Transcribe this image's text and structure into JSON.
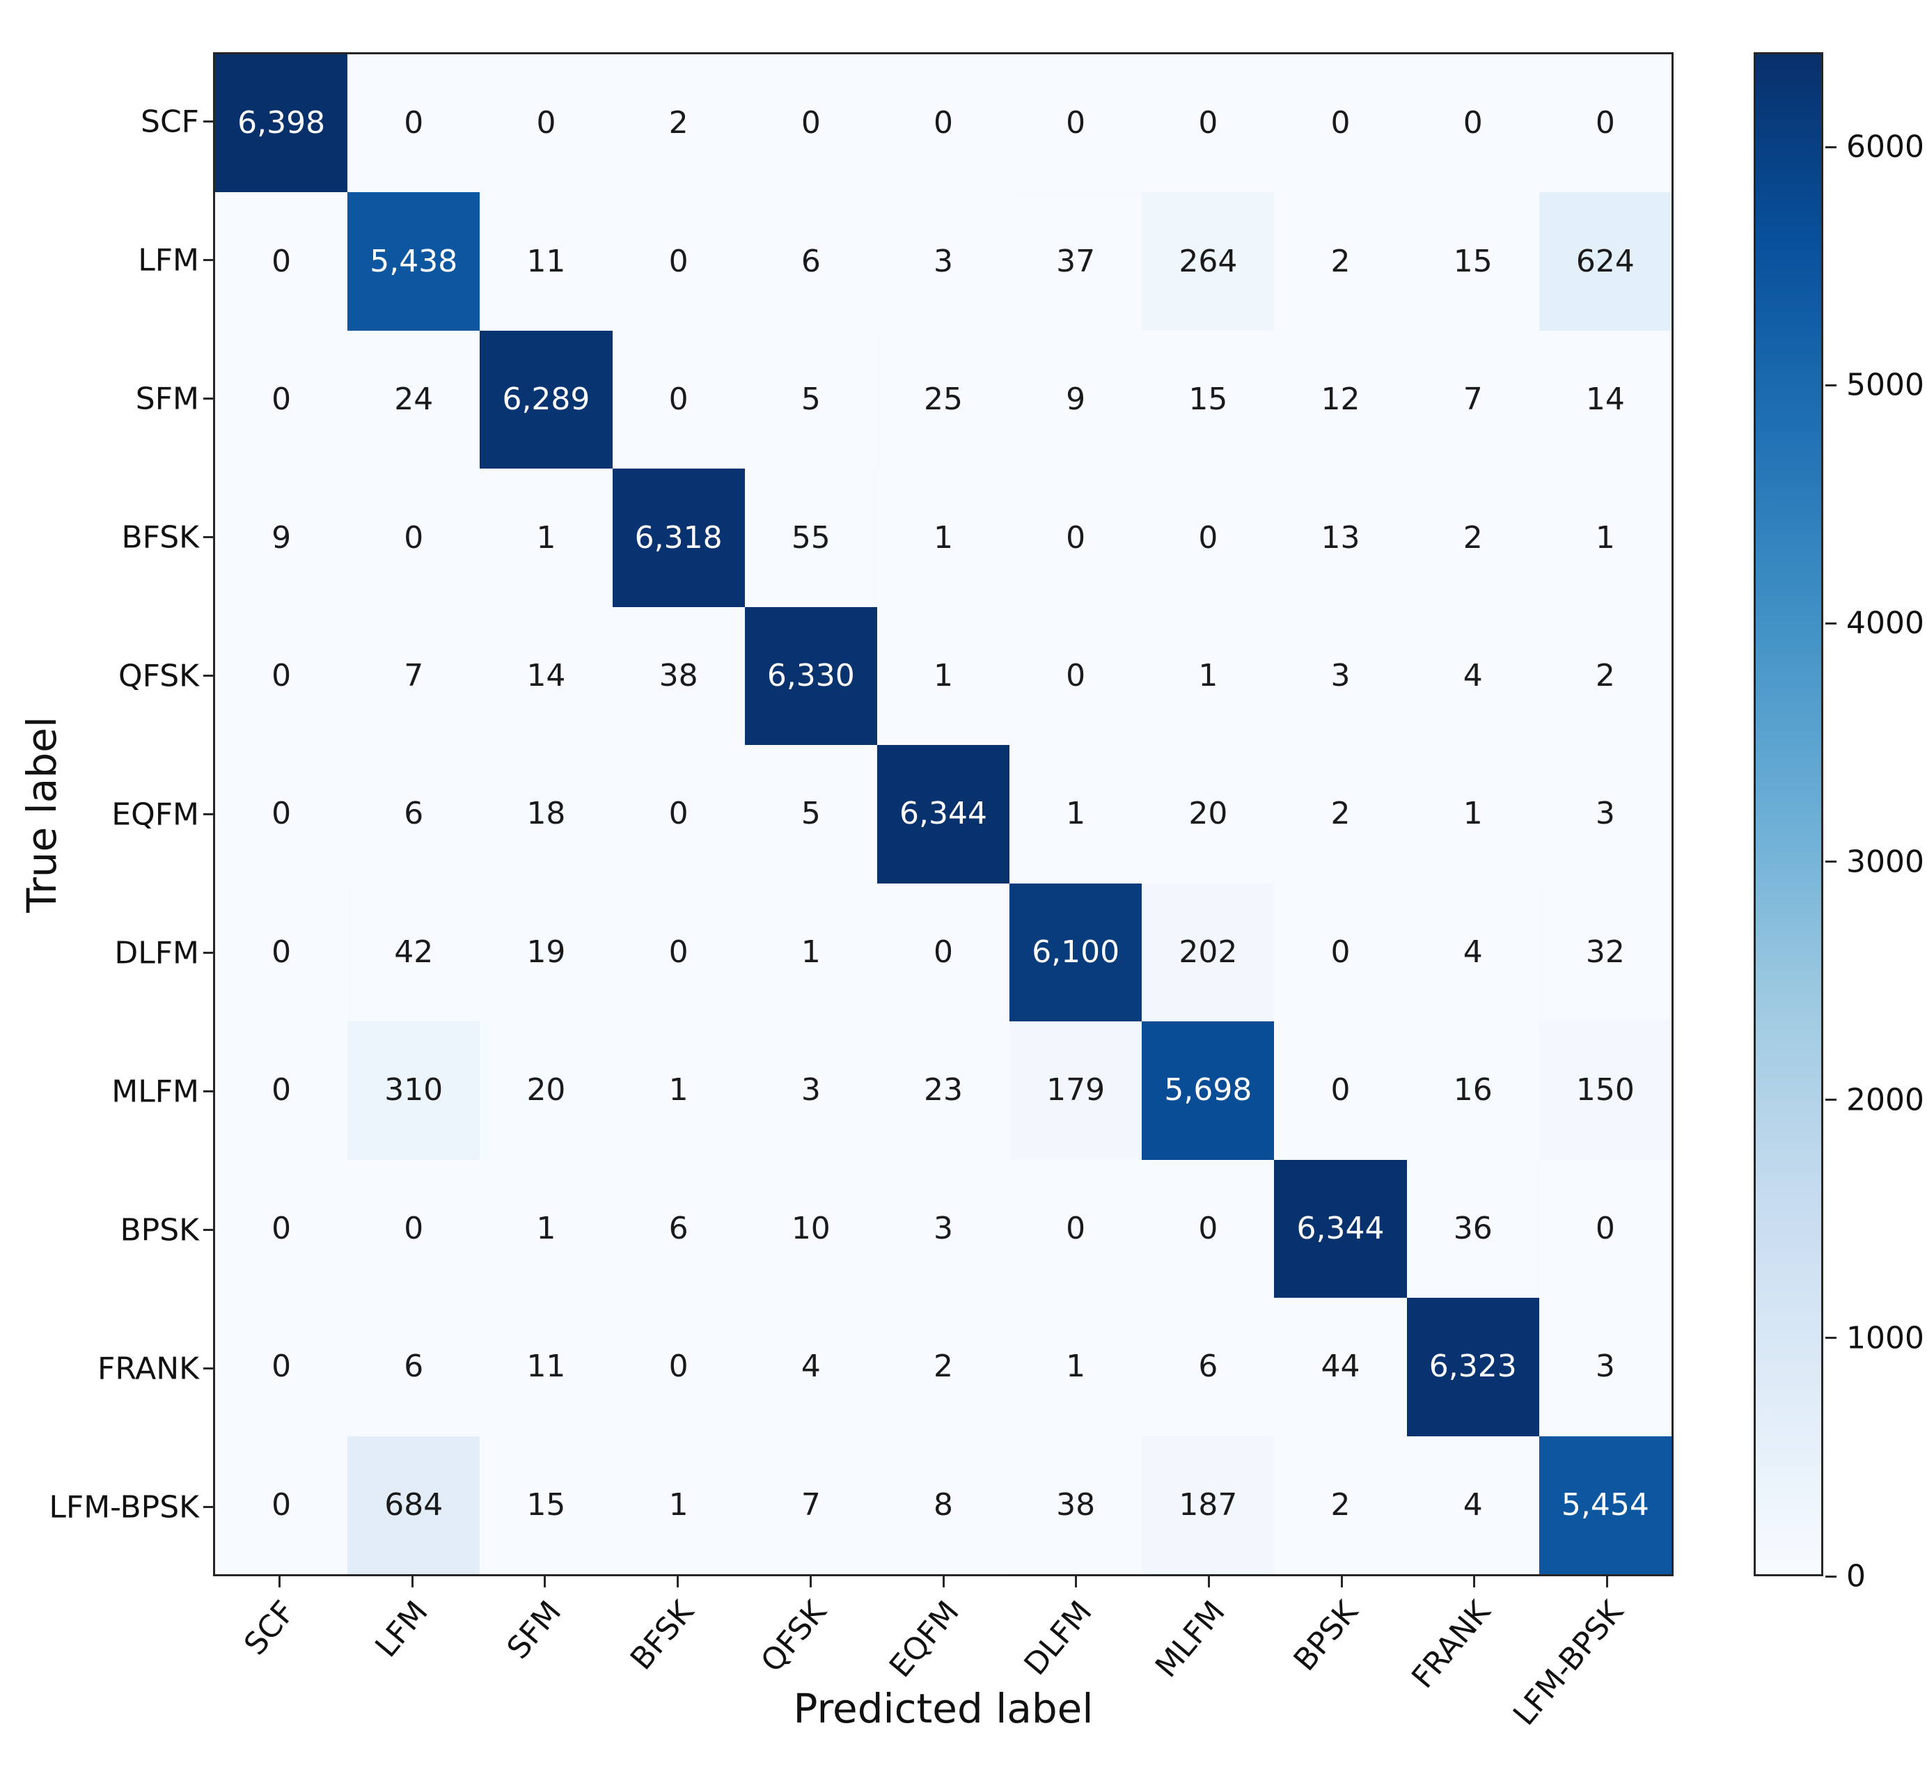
{
  "figure": {
    "xlabel": "Predicted label",
    "ylabel": "True label"
  },
  "chart_data": {
    "type": "heatmap",
    "subtype": "confusion-matrix",
    "title": "",
    "xlabel": "Predicted label",
    "ylabel": "True label",
    "classes": [
      "SCF",
      "LFM",
      "SFM",
      "BFSK",
      "QFSK",
      "EQFM",
      "DLFM",
      "MLFM",
      "BPSK",
      "FRANK",
      "LFM-BPSK"
    ],
    "matrix": [
      [
        6398,
        0,
        0,
        2,
        0,
        0,
        0,
        0,
        0,
        0,
        0
      ],
      [
        0,
        5438,
        11,
        0,
        6,
        3,
        37,
        264,
        2,
        15,
        624
      ],
      [
        0,
        24,
        6289,
        0,
        5,
        25,
        9,
        15,
        12,
        7,
        14
      ],
      [
        9,
        0,
        1,
        6318,
        55,
        1,
        0,
        0,
        13,
        2,
        1
      ],
      [
        0,
        7,
        14,
        38,
        6330,
        1,
        0,
        1,
        3,
        4,
        2
      ],
      [
        0,
        6,
        18,
        0,
        5,
        6344,
        1,
        20,
        2,
        1,
        3
      ],
      [
        0,
        42,
        19,
        0,
        1,
        0,
        6100,
        202,
        0,
        4,
        32
      ],
      [
        0,
        310,
        20,
        1,
        3,
        23,
        179,
        5698,
        0,
        16,
        150
      ],
      [
        0,
        0,
        1,
        6,
        10,
        3,
        0,
        0,
        6344,
        36,
        0
      ],
      [
        0,
        6,
        11,
        0,
        4,
        2,
        1,
        6,
        44,
        6323,
        3
      ],
      [
        0,
        684,
        15,
        1,
        7,
        8,
        38,
        187,
        2,
        4,
        5454
      ]
    ],
    "value_format": "thousands-comma",
    "colormap": {
      "name": "Blues",
      "vmin": 0,
      "vmax": 6398,
      "stops": [
        {
          "t": 0.0,
          "color": "#f7fbff"
        },
        {
          "t": 0.125,
          "color": "#deebf7"
        },
        {
          "t": 0.25,
          "color": "#c6dbef"
        },
        {
          "t": 0.375,
          "color": "#9ecae1"
        },
        {
          "t": 0.5,
          "color": "#6baed6"
        },
        {
          "t": 0.625,
          "color": "#4292c6"
        },
        {
          "t": 0.75,
          "color": "#2171b5"
        },
        {
          "t": 0.875,
          "color": "#08519c"
        },
        {
          "t": 1.0,
          "color": "#08306b"
        }
      ],
      "text_color_light": "#ffffff",
      "text_color_dark": "#1a1a1a",
      "text_threshold": 0.5
    },
    "colorbar": {
      "position": "right",
      "ticks": [
        0,
        1000,
        2000,
        3000,
        4000,
        5000,
        6000
      ]
    },
    "grid": false,
    "spine_color": "#262626"
  }
}
